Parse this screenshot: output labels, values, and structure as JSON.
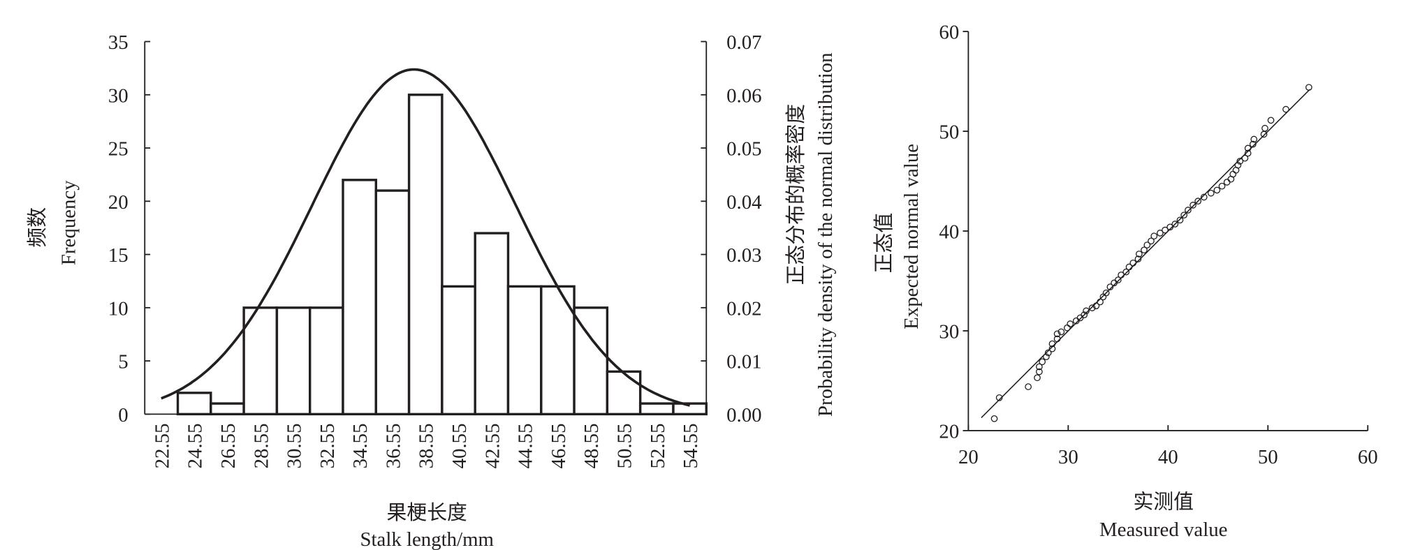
{
  "chart_data": [
    {
      "type": "bar",
      "subtype": "histogram with fitted normal curve",
      "categories": [
        "22.55",
        "24.55",
        "26.55",
        "28.55",
        "30.55",
        "32.55",
        "34.55",
        "36.55",
        "38.55",
        "40.55",
        "42.55",
        "44.55",
        "46.55",
        "48.55",
        "50.55",
        "52.55",
        "54.55"
      ],
      "values": [
        0,
        2,
        1,
        10,
        10,
        10,
        22,
        21,
        30,
        12,
        17,
        12,
        12,
        10,
        4,
        1,
        1
      ],
      "xlabel_cn": "果梗长度",
      "xlabel": "Stalk length/mm",
      "ylabel_cn": "频数",
      "ylabel": "Frequency",
      "ylim": [
        0,
        35
      ],
      "yticks": [
        "0",
        "5",
        "10",
        "15",
        "20",
        "25",
        "30",
        "35"
      ],
      "y2label_cn": "正态分布的概率密度",
      "y2label": "Probability density of the normal distribution",
      "y2lim": [
        0,
        0.07
      ],
      "y2ticks": [
        "0.00",
        "0.01",
        "0.02",
        "0.03",
        "0.04",
        "0.05",
        "0.06",
        "0.07"
      ],
      "normal_curve": {
        "mean": 37.85,
        "sd": 6.16,
        "x_range": [
          22.55,
          54.55
        ]
      }
    },
    {
      "type": "scatter",
      "subtype": "normal Q-Q plot",
      "xlabel_cn": "实测值",
      "xlabel": "Measured value",
      "ylabel_cn": "正态值",
      "ylabel": "Expected normal value",
      "xlim": [
        20,
        60
      ],
      "ylim": [
        20,
        60
      ],
      "xticks": [
        "20",
        "30",
        "40",
        "50",
        "60"
      ],
      "yticks": [
        "20",
        "30",
        "40",
        "50",
        "60"
      ],
      "reference_line": [
        [
          21.3,
          21.3
        ],
        [
          54.2,
          54.2
        ]
      ],
      "points": [
        [
          22.6,
          21.2
        ],
        [
          23.1,
          23.3
        ],
        [
          26.0,
          24.4
        ],
        [
          26.9,
          25.3
        ],
        [
          27.1,
          25.9
        ],
        [
          27.1,
          26.4
        ],
        [
          27.4,
          26.9
        ],
        [
          27.8,
          27.4
        ],
        [
          28.0,
          27.8
        ],
        [
          28.4,
          28.2
        ],
        [
          28.4,
          28.7
        ],
        [
          28.9,
          29.2
        ],
        [
          28.9,
          29.7
        ],
        [
          29.3,
          29.9
        ],
        [
          29.9,
          30.3
        ],
        [
          30.2,
          30.7
        ],
        [
          30.8,
          31.0
        ],
        [
          31.2,
          31.3
        ],
        [
          31.6,
          31.6
        ],
        [
          31.8,
          32.0
        ],
        [
          32.4,
          32.3
        ],
        [
          32.8,
          32.5
        ],
        [
          33.2,
          32.9
        ],
        [
          33.5,
          33.4
        ],
        [
          33.8,
          33.8
        ],
        [
          34.2,
          34.4
        ],
        [
          34.6,
          34.8
        ],
        [
          35.0,
          35.1
        ],
        [
          35.3,
          35.6
        ],
        [
          35.8,
          35.9
        ],
        [
          36.1,
          36.4
        ],
        [
          36.5,
          36.8
        ],
        [
          37.0,
          37.2
        ],
        [
          37.1,
          37.7
        ],
        [
          37.6,
          38.1
        ],
        [
          37.9,
          38.6
        ],
        [
          38.3,
          39.0
        ],
        [
          38.6,
          39.5
        ],
        [
          39.2,
          39.8
        ],
        [
          39.7,
          40.1
        ],
        [
          40.2,
          40.4
        ],
        [
          40.7,
          40.7
        ],
        [
          41.2,
          41.1
        ],
        [
          41.6,
          41.6
        ],
        [
          42.0,
          42.1
        ],
        [
          42.5,
          42.6
        ],
        [
          43.0,
          43.0
        ],
        [
          43.6,
          43.4
        ],
        [
          44.3,
          43.8
        ],
        [
          44.9,
          44.1
        ],
        [
          45.4,
          44.5
        ],
        [
          45.9,
          44.9
        ],
        [
          46.3,
          45.2
        ],
        [
          46.5,
          45.7
        ],
        [
          46.8,
          46.1
        ],
        [
          47.0,
          46.6
        ],
        [
          47.2,
          47.0
        ],
        [
          47.7,
          47.3
        ],
        [
          48.0,
          47.8
        ],
        [
          48.0,
          48.3
        ],
        [
          48.5,
          48.7
        ],
        [
          48.6,
          49.2
        ],
        [
          49.6,
          49.7
        ],
        [
          49.7,
          50.3
        ],
        [
          50.3,
          51.1
        ],
        [
          51.8,
          52.2
        ],
        [
          54.1,
          54.4
        ]
      ]
    }
  ]
}
